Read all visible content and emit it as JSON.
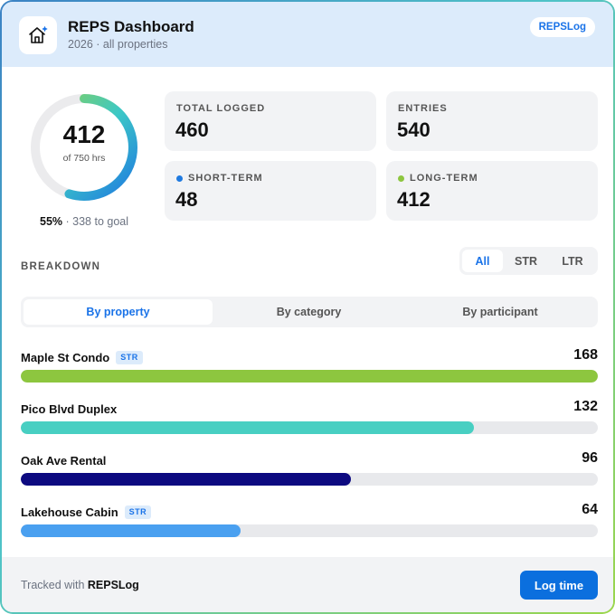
{
  "header": {
    "title": "REPS Dashboard",
    "subtitle": "2026 · all properties",
    "brand": "REPSLog",
    "icon": "house-sparkle-icon"
  },
  "progress": {
    "value": "412",
    "of_label": "of 750 hrs",
    "fraction": 0.549,
    "percent": "55%",
    "to_goal": " · 338 to goal",
    "colors": {
      "start": "#1f7ae0",
      "mid": "#3cc8c6",
      "end": "#8fd14f",
      "track": "#ebebed"
    }
  },
  "stats": [
    {
      "label": "TOTAL LOGGED",
      "value": "460",
      "dot": null
    },
    {
      "label": "ENTRIES",
      "value": "540",
      "dot": null
    },
    {
      "label": "SHORT-TERM",
      "value": "48",
      "dot": "#1f7ae0"
    },
    {
      "label": "LONG-TERM",
      "value": "412",
      "dot": "#8dc63f"
    }
  ],
  "breakdown": {
    "title": "BREAKDOWN",
    "filter": {
      "options": [
        "All",
        "STR",
        "LTR"
      ],
      "selected": "All"
    },
    "tabs": {
      "options": [
        "By property",
        "By category",
        "By participant"
      ],
      "selected": "By property"
    },
    "max": 168,
    "rows": [
      {
        "name": "Maple St Condo",
        "tag": "STR",
        "value": 168,
        "color": "#8dc63f"
      },
      {
        "name": "Pico Blvd Duplex",
        "tag": "",
        "value": 132,
        "color": "#48cfc2"
      },
      {
        "name": "Oak Ave Rental",
        "tag": "",
        "value": 96,
        "color": "#0d0a80"
      },
      {
        "name": "Lakehouse Cabin",
        "tag": "STR",
        "value": 64,
        "color": "#4aa0f0"
      }
    ]
  },
  "footer": {
    "tracked_prefix": "Tracked with ",
    "tracked_brand": "REPSLog",
    "button": "Log time"
  }
}
